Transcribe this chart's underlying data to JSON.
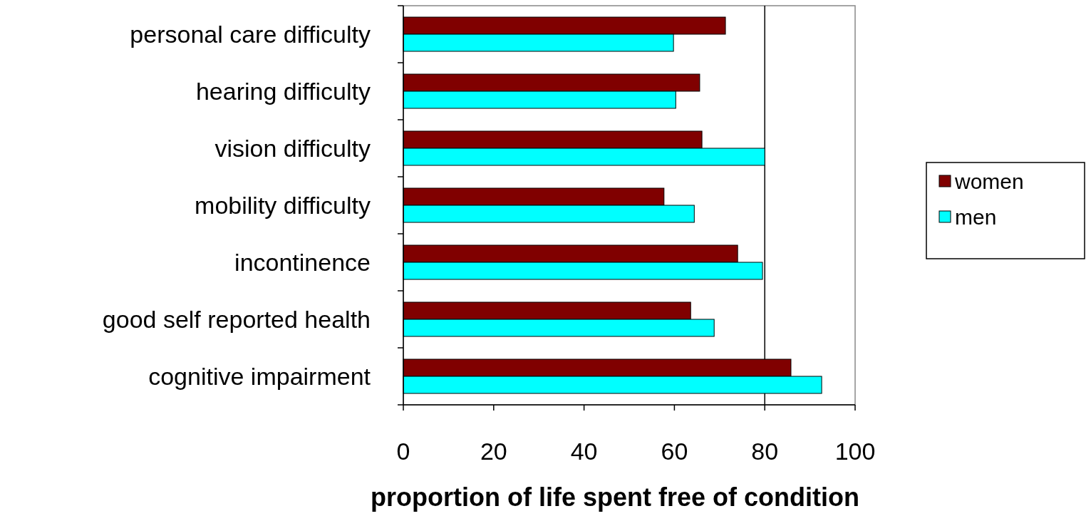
{
  "chart_data": {
    "type": "bar",
    "orientation": "horizontal",
    "xlabel": "proportion of life spent free of condition",
    "categories": [
      "personal care difficulty",
      "hearing difficulty",
      "vision difficulty",
      "mobility difficulty",
      "incontinence",
      "good self reported health",
      "cognitive impairment"
    ],
    "series": [
      {
        "name": "women",
        "color": "#800000",
        "values": [
          71.3,
          65.6,
          66.1,
          57.7,
          74,
          63.6,
          85.8
        ]
      },
      {
        "name": "men",
        "color": "#00ffff",
        "values": [
          59.8,
          60.3,
          80,
          64.4,
          79.5,
          68.8,
          92.6
        ]
      }
    ],
    "xlim": [
      0,
      100
    ],
    "xticks": [
      0,
      20,
      40,
      60,
      80,
      100
    ],
    "ref_lines": [
      {
        "axis": "x",
        "value": 80,
        "color": "#000000"
      }
    ],
    "legend": "right"
  }
}
